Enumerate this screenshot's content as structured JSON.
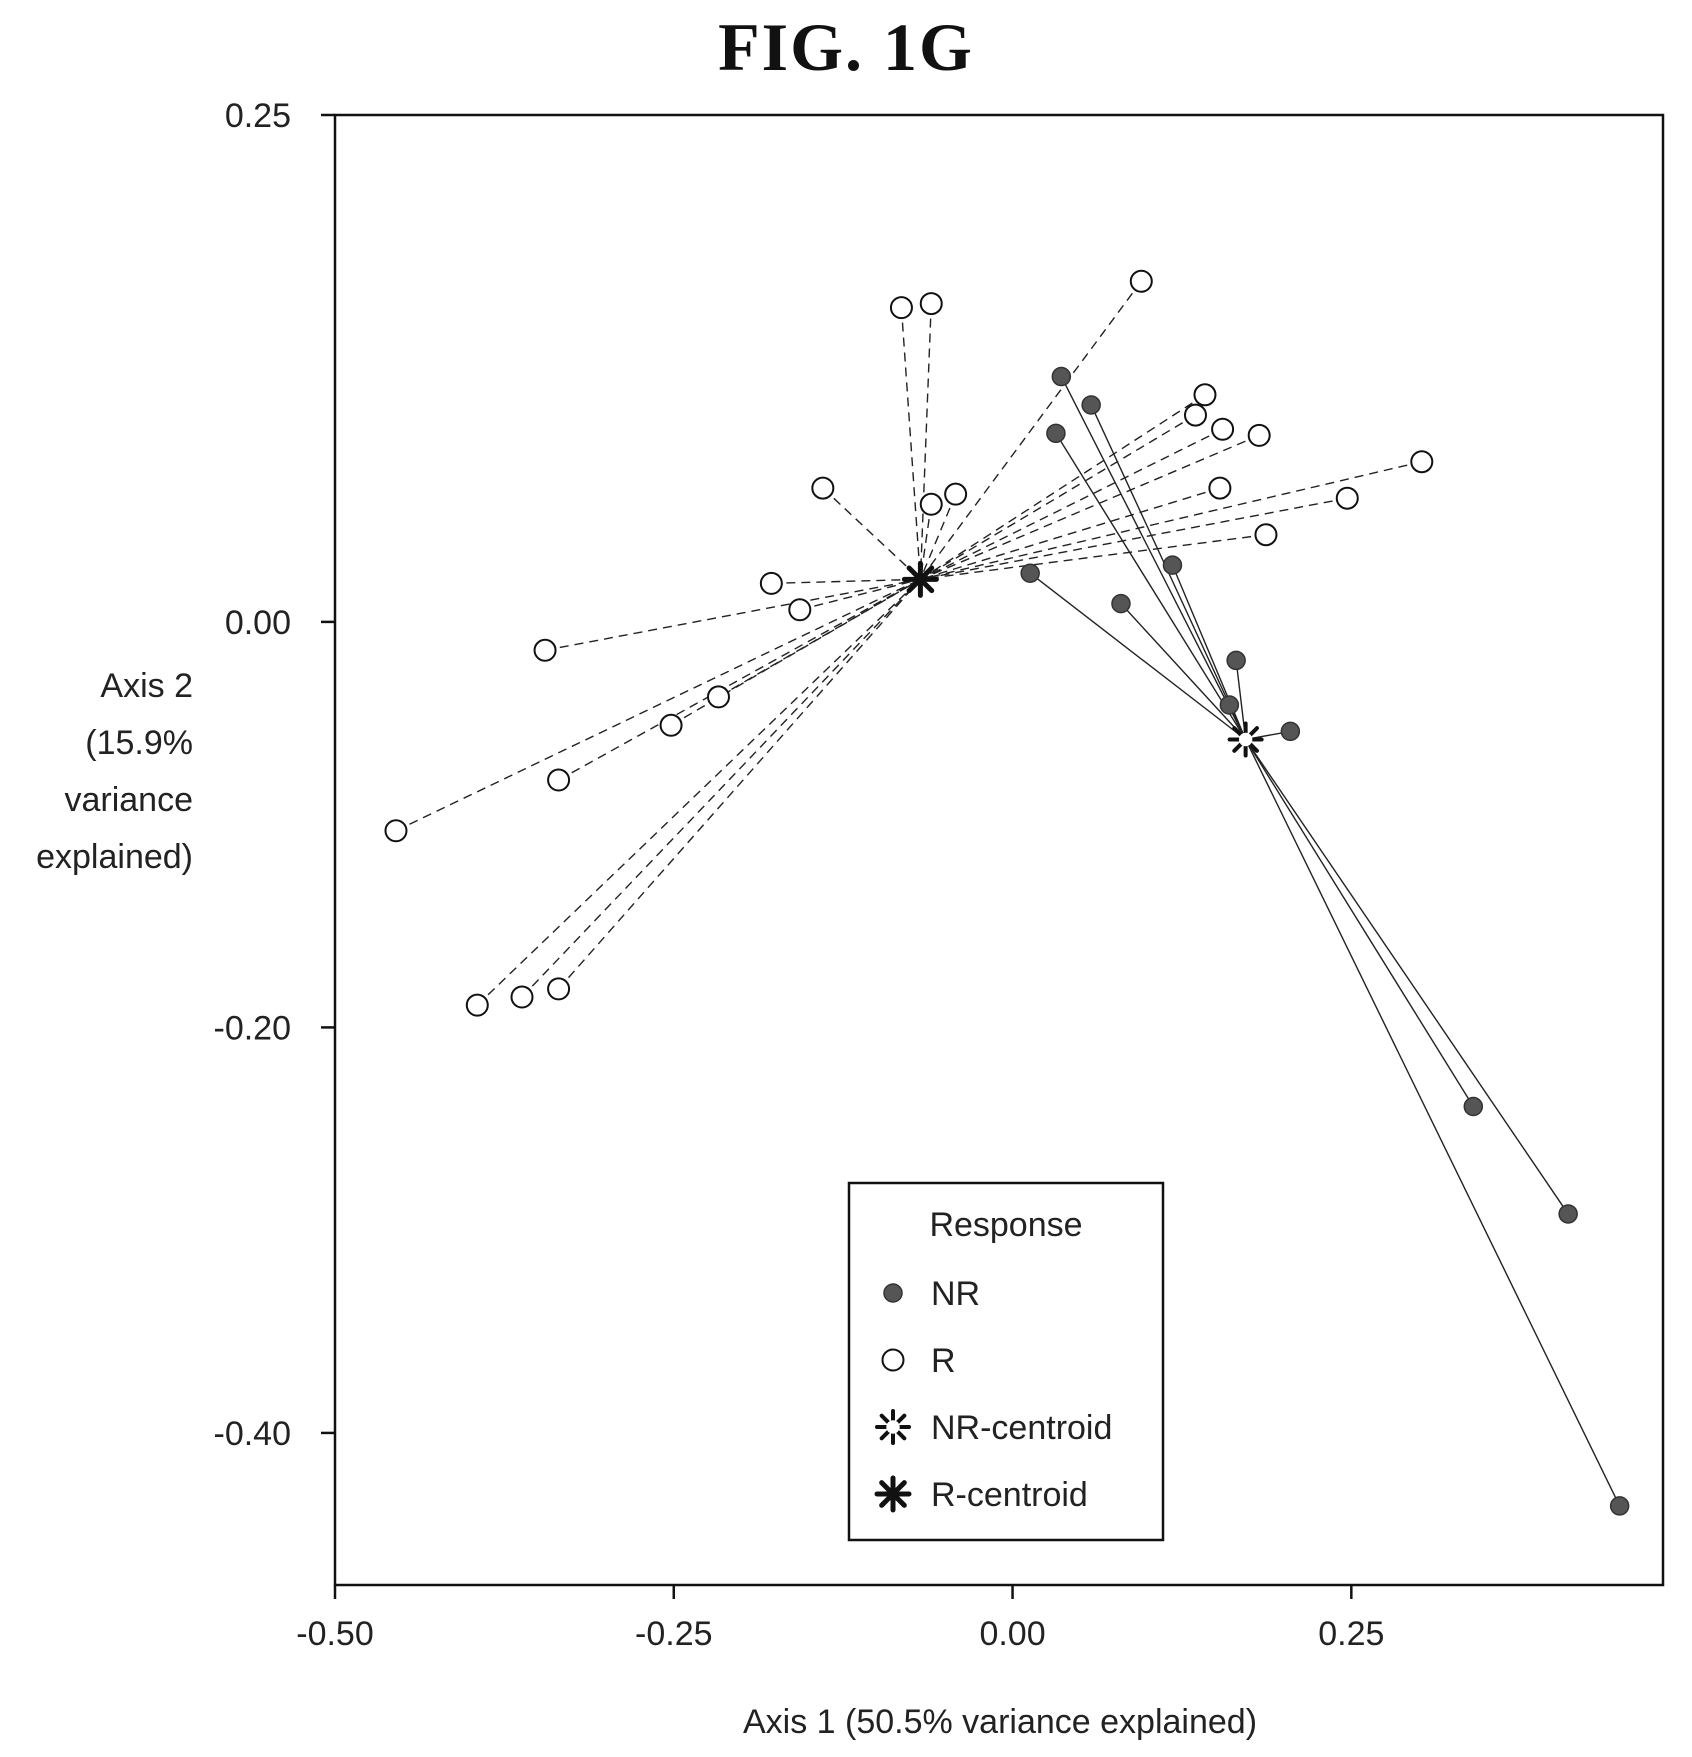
{
  "figure_title": "FIG. 1G",
  "chart_data": {
    "type": "scatter",
    "xlabel": "Axis 1 (50.5% variance explained)",
    "ylabel_lines": [
      "Axis 2",
      "(15.9%",
      "variance",
      "explained)"
    ],
    "xlim": [
      -0.5,
      0.48
    ],
    "ylim": [
      -0.475,
      0.25
    ],
    "x_ticks": [
      -0.5,
      -0.25,
      0.0,
      0.25
    ],
    "x_tick_labels": [
      "-0.50",
      "-0.25",
      "0.00",
      "0.25"
    ],
    "y_ticks": [
      0.25,
      0.0,
      -0.2,
      -0.4
    ],
    "y_tick_labels": [
      "0.25",
      "0.00",
      "-0.20",
      "-0.40"
    ],
    "legend": {
      "title": "Response",
      "position": "bottom-center",
      "entries": [
        {
          "label": "NR",
          "marker": "filled-circle"
        },
        {
          "label": "R",
          "marker": "open-circle"
        },
        {
          "label": "NR-centroid",
          "marker": "open-star"
        },
        {
          "label": "R-centroid",
          "marker": "filled-star"
        }
      ]
    },
    "centroids": [
      {
        "group": "NR",
        "x": 0.172,
        "y": -0.058
      },
      {
        "group": "R",
        "x": -0.068,
        "y": 0.021
      }
    ],
    "series": [
      {
        "name": "NR",
        "marker": "filled",
        "x": [
          0.036,
          0.058,
          0.032,
          0.013,
          0.08,
          0.118,
          0.165,
          0.16,
          0.205,
          0.34,
          0.41,
          0.448
        ],
        "y": [
          0.121,
          0.107,
          0.093,
          0.024,
          0.009,
          0.028,
          -0.019,
          -0.041,
          -0.054,
          -0.239,
          -0.292,
          -0.436
        ]
      },
      {
        "name": "R",
        "marker": "open",
        "x": [
          0.095,
          -0.082,
          -0.06,
          0.142,
          0.135,
          0.155,
          0.182,
          0.302,
          0.153,
          0.247,
          0.187,
          -0.14,
          -0.042,
          -0.06,
          -0.178,
          -0.157,
          -0.345,
          -0.217,
          -0.252,
          -0.335,
          -0.455,
          -0.395,
          -0.362,
          -0.335
        ],
        "y": [
          0.168,
          0.155,
          0.157,
          0.112,
          0.102,
          0.095,
          0.092,
          0.079,
          0.066,
          0.061,
          0.043,
          0.066,
          0.063,
          0.058,
          0.019,
          0.006,
          -0.014,
          -0.037,
          -0.051,
          -0.078,
          -0.103,
          -0.189,
          -0.185,
          -0.181
        ]
      }
    ],
    "grid": false
  }
}
